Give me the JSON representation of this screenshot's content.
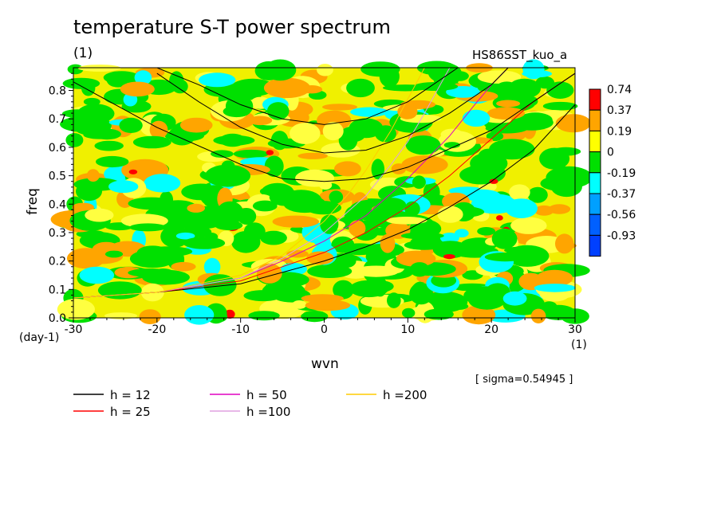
{
  "figure": {
    "title": "temperature S-T power spectrum",
    "subtitle": "(1)",
    "dataset": "HS86SST_kuo_a",
    "sigma_note": "[ sigma=0.54945 ]"
  },
  "chart_data": {
    "type": "heatmap",
    "title": "temperature S-T power spectrum",
    "xlabel": "wvn",
    "ylabel": "freq",
    "x_unit": "(1)",
    "y_unit": "(day-1)",
    "xlim": [
      -30,
      30
    ],
    "ylim": [
      0,
      0.88
    ],
    "x_ticks": [
      -30,
      -20,
      -10,
      0,
      10,
      20,
      30
    ],
    "x_tick_labels": [
      "-30",
      "-20",
      "-10",
      "0",
      "10",
      "20",
      "30"
    ],
    "y_ticks": [
      0.0,
      0.1,
      0.2,
      0.3,
      0.4,
      0.5,
      0.6,
      0.7,
      0.8
    ],
    "y_tick_labels": [
      "0.0",
      "0.1",
      "0.2",
      "0.3",
      "0.4",
      "0.5",
      "0.6",
      "0.7",
      "0.8"
    ],
    "color_levels": [
      {
        "label": "0.74",
        "color": "#ff0000"
      },
      {
        "label": "0.37",
        "color": "#ffa500"
      },
      {
        "label": "0.19",
        "color": "#ffff00"
      },
      {
        "label": "0",
        "color": "#00e000"
      },
      {
        "label": "-0.19",
        "color": "#00ffff"
      },
      {
        "label": "-0.37",
        "color": "#00a0ff"
      },
      {
        "label": "-0.56",
        "color": "#0060ff"
      },
      {
        "label": "-0.93",
        "color": "#0040ff"
      }
    ],
    "dispersion_curves": {
      "kelvin": [
        {
          "name": "h = 12",
          "color": "#000000",
          "points": [
            [
              -30,
              0.07
            ],
            [
              -20,
              0.09
            ],
            [
              -10,
              0.12
            ],
            [
              -5,
              0.16
            ],
            [
              0,
              0.2
            ],
            [
              5,
              0.25
            ],
            [
              10,
              0.31
            ],
            [
              15,
              0.39
            ],
            [
              20,
              0.48
            ],
            [
              25,
              0.59
            ],
            [
              30,
              0.75
            ]
          ]
        },
        {
          "name": "h = 25",
          "color": "#ff0000",
          "points": [
            [
              -30,
              0.07
            ],
            [
              -20,
              0.09
            ],
            [
              -10,
              0.13
            ],
            [
              -5,
              0.18
            ],
            [
              0,
              0.23
            ],
            [
              5,
              0.3
            ],
            [
              10,
              0.39
            ],
            [
              15,
              0.5
            ],
            [
              20,
              0.63
            ],
            [
              25,
              0.76
            ],
            [
              30,
              0.86
            ]
          ]
        },
        {
          "name": "h = 50",
          "color": "#e000c0",
          "points": [
            [
              -30,
              0.07
            ],
            [
              -20,
              0.09
            ],
            [
              -10,
              0.14
            ],
            [
              -5,
              0.2
            ],
            [
              0,
              0.27
            ],
            [
              5,
              0.36
            ],
            [
              10,
              0.49
            ],
            [
              15,
              0.64
            ],
            [
              18,
              0.75
            ],
            [
              20,
              0.82
            ],
            [
              22,
              0.88
            ]
          ]
        },
        {
          "name": "h =100",
          "color": "#e0a0e0",
          "points": [
            [
              -30,
              0.07
            ],
            [
              -20,
              0.09
            ],
            [
              -10,
              0.14
            ],
            [
              -5,
              0.21
            ],
            [
              0,
              0.3
            ],
            [
              5,
              0.43
            ],
            [
              8,
              0.54
            ],
            [
              10,
              0.62
            ],
            [
              12,
              0.72
            ],
            [
              15,
              0.88
            ]
          ]
        },
        {
          "name": "h =200",
          "color": "#ffcc00",
          "points": [
            [
              -30,
              0.07
            ],
            [
              -20,
              0.09
            ],
            [
              -10,
              0.15
            ],
            [
              -5,
              0.22
            ],
            [
              0,
              0.34
            ],
            [
              3,
              0.44
            ],
            [
              5,
              0.52
            ],
            [
              8,
              0.66
            ],
            [
              10,
              0.77
            ],
            [
              12,
              0.88
            ]
          ]
        }
      ],
      "ig_curves": [
        {
          "color": "#000000",
          "points": [
            [
              -30,
              0.83
            ],
            [
              -20,
              0.67
            ],
            [
              -10,
              0.54
            ],
            [
              -5,
              0.49
            ],
            [
              0,
              0.48
            ],
            [
              5,
              0.49
            ],
            [
              10,
              0.53
            ],
            [
              20,
              0.66
            ],
            [
              30,
              0.86
            ]
          ]
        },
        {
          "color": "#000000",
          "points": [
            [
              -20,
              0.86
            ],
            [
              -15,
              0.76
            ],
            [
              -10,
              0.67
            ],
            [
              -5,
              0.61
            ],
            [
              0,
              0.58
            ],
            [
              5,
              0.59
            ],
            [
              10,
              0.64
            ],
            [
              15,
              0.72
            ],
            [
              20,
              0.82
            ],
            [
              22,
              0.88
            ]
          ]
        },
        {
          "color": "#000000",
          "points": [
            [
              -20,
              0.88
            ],
            [
              -15,
              0.82
            ],
            [
              -10,
              0.75
            ],
            [
              -5,
              0.7
            ],
            [
              0,
              0.68
            ],
            [
              5,
              0.7
            ],
            [
              10,
              0.76
            ],
            [
              15,
              0.86
            ],
            [
              16,
              0.88
            ]
          ]
        }
      ]
    }
  }
}
